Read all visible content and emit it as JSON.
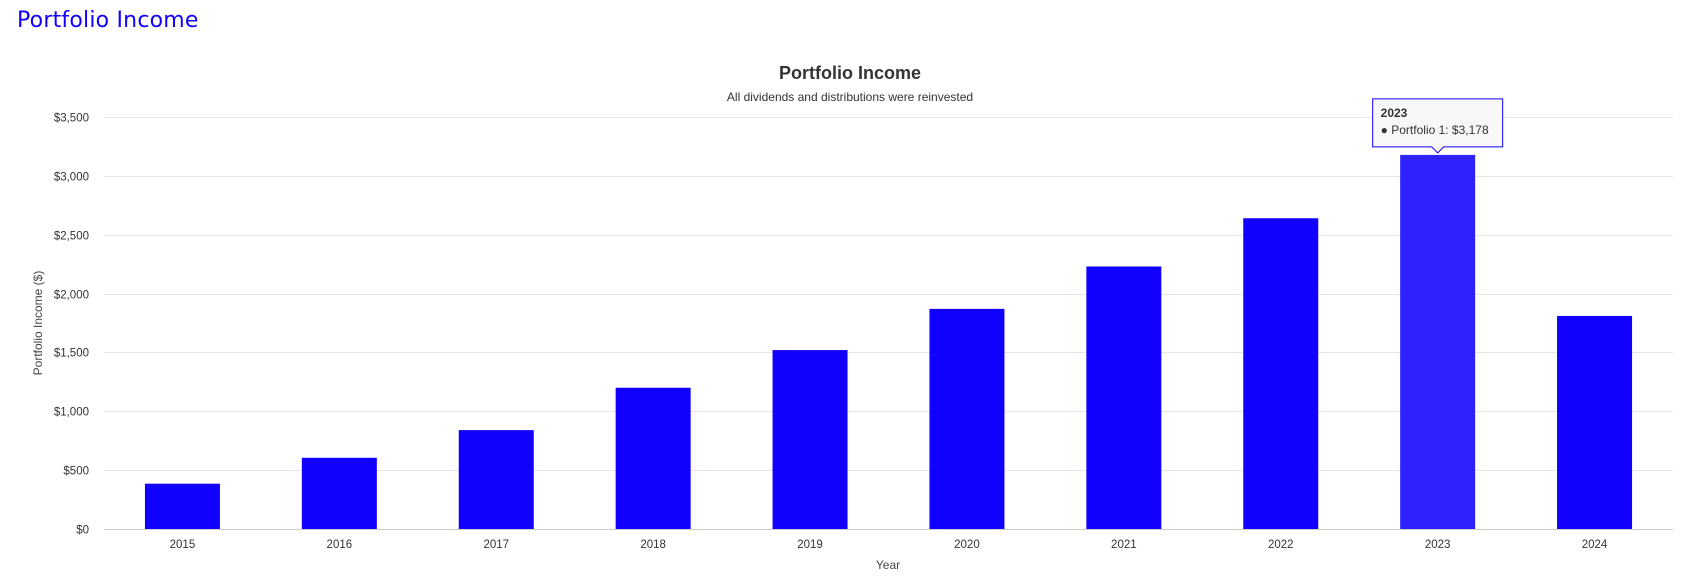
{
  "page": {
    "heading": "Portfolio Income"
  },
  "colors": {
    "bar": "#1200ff",
    "bar_hover": "#2f20ff",
    "accent": "#1200ff"
  },
  "chart_data": {
    "type": "bar",
    "title": "Portfolio Income",
    "subtitle": "All dividends and distributions were reinvested",
    "xlabel": "Year",
    "ylabel": "Portfolio Income ($)",
    "ylim": [
      0,
      3500
    ],
    "yticks": [
      0,
      500,
      1000,
      1500,
      2000,
      2500,
      3000,
      3500
    ],
    "ytick_labels": [
      "$0",
      "$500",
      "$1,000",
      "$1,500",
      "$2,000",
      "$2,500",
      "$3,000",
      "$3,500"
    ],
    "grid": true,
    "categories": [
      "2015",
      "2016",
      "2017",
      "2018",
      "2019",
      "2020",
      "2021",
      "2022",
      "2023",
      "2024"
    ],
    "series": [
      {
        "name": "Portfolio 1",
        "values": [
          385,
          605,
          840,
          1200,
          1520,
          1870,
          2230,
          2640,
          3178,
          1810
        ]
      }
    ],
    "tooltip": {
      "category": "2023",
      "title": "2023",
      "text": "● Portfolio 1: $3,178"
    }
  }
}
